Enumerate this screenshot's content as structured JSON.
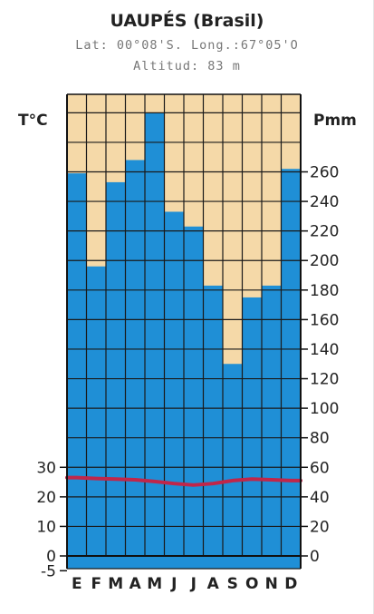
{
  "chart_data": {
    "type": "bar",
    "title": "UAUPÉS (Brasil)",
    "subtitle_1": "Lat: 00°08'S.  Long.:67°05'O",
    "subtitle_2": "Altitud: 83 m",
    "left_axis_label": "T°C",
    "right_axis_label": "Pmm",
    "categories": [
      "E",
      "F",
      "M",
      "A",
      "M",
      "J",
      "J",
      "A",
      "S",
      "O",
      "N",
      "D"
    ],
    "series": [
      {
        "name": "Pmm",
        "type": "bar",
        "axis": "right",
        "color": "#1f8fd6",
        "values": [
          259,
          196,
          253,
          268,
          300,
          233,
          223,
          183,
          130,
          175,
          183,
          262
        ]
      },
      {
        "name": "T°C",
        "type": "line",
        "axis": "left",
        "color": "#c0264a",
        "values": [
          26.5,
          26.2,
          26.0,
          25.8,
          25.2,
          24.5,
          24.0,
          24.5,
          25.5,
          26.0,
          25.8,
          25.5
        ]
      }
    ],
    "left_ticks": [
      "30",
      "20",
      "10",
      "0",
      "-5"
    ],
    "right_ticks": [
      "260",
      "240",
      "220",
      "200",
      "180",
      "160",
      "140",
      "120",
      "100",
      "80",
      "60",
      "40",
      "20",
      "0"
    ],
    "ylim_right": [
      0,
      300
    ],
    "ylim_left": [
      -5,
      30
    ],
    "background_color": "#f5d9a8",
    "grid": true
  }
}
